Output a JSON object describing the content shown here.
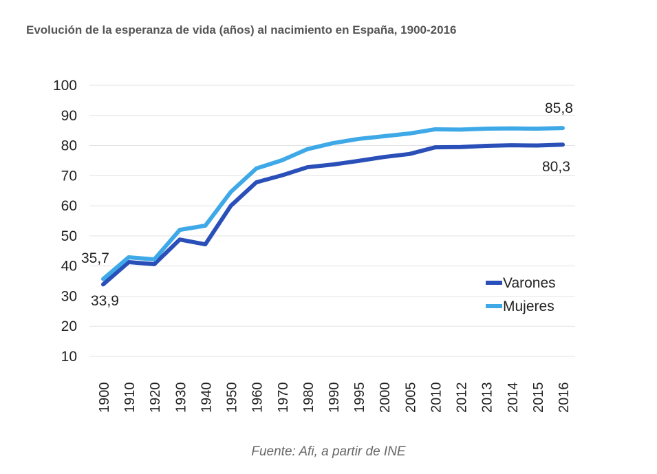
{
  "chart_data": {
    "type": "line",
    "title": "Evolución de la esperanza de vida (años) al nacimiento en España, 1900-2016",
    "source": "Fuente: Afi, a partir de INE",
    "categories": [
      "1900",
      "1910",
      "1920",
      "1930",
      "1940",
      "1950",
      "1960",
      "1970",
      "1980",
      "1990",
      "1995",
      "2000",
      "2005",
      "2010",
      "2012",
      "2013",
      "2014",
      "2015",
      "2016"
    ],
    "ylim": [
      10,
      100
    ],
    "yticks": [
      10,
      20,
      30,
      40,
      50,
      60,
      70,
      80,
      90,
      100
    ],
    "grid": true,
    "legend": "bottom-right",
    "series": [
      {
        "name": "Varones",
        "color": "#2a4fb8",
        "values": [
          33.9,
          41.3,
          40.6,
          48.8,
          47.2,
          60.0,
          67.8,
          70.1,
          72.8,
          73.7,
          74.9,
          76.2,
          77.2,
          79.4,
          79.5,
          79.9,
          80.1,
          80.0,
          80.3
        ]
      },
      {
        "name": "Mujeres",
        "color": "#3fa9e8",
        "values": [
          35.7,
          42.9,
          42.2,
          52.0,
          53.4,
          64.6,
          72.4,
          75.1,
          78.8,
          80.8,
          82.2,
          83.1,
          84.0,
          85.4,
          85.3,
          85.6,
          85.7,
          85.6,
          85.8
        ]
      }
    ],
    "annotations": {
      "varones_start": "33,9",
      "mujeres_start": "35,7",
      "varones_end": "80,3",
      "mujeres_end": "85,8"
    }
  }
}
